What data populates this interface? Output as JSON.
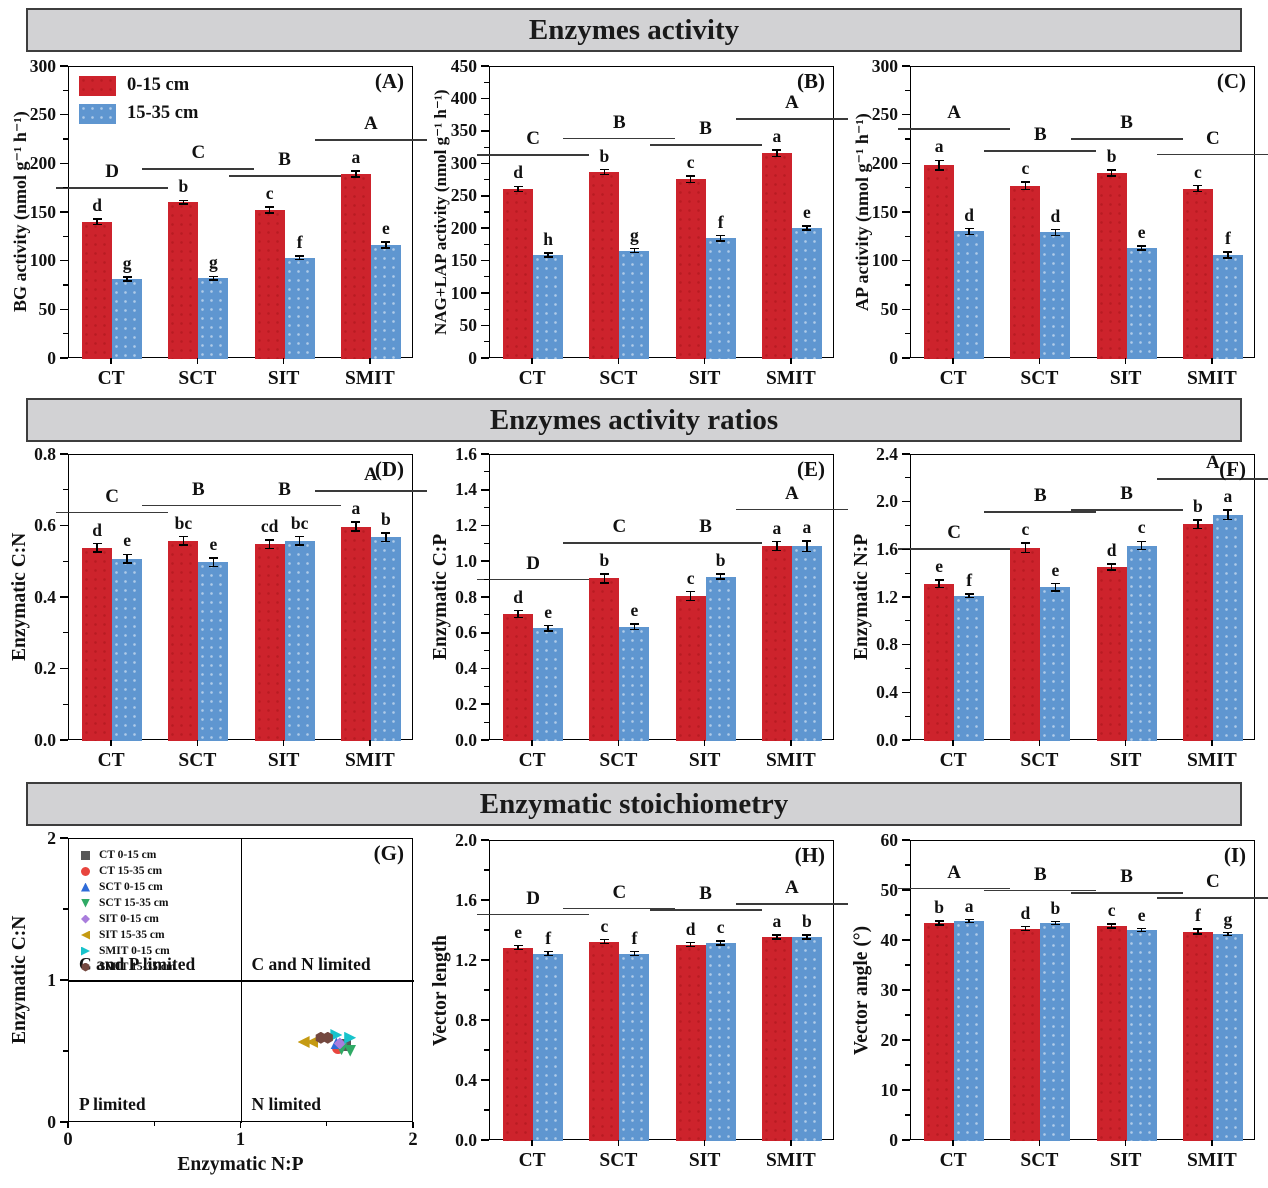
{
  "colors": {
    "red": "#cd232c",
    "blue": "#5f96d0",
    "header_bg": "#d2d2d4",
    "header_border": "#3d3d3d",
    "axis": "#000000"
  },
  "sections": [
    {
      "title": "Enzymes activity"
    },
    {
      "title": "Enzymes activity ratios"
    },
    {
      "title": "Enzymatic stoichiometry"
    }
  ],
  "depth_legend": {
    "series1": "0-15 cm",
    "series2": "15-35 cm"
  },
  "chart_data": [
    {
      "id": "A",
      "type": "bar",
      "panel_label": "(A)",
      "ylabel": "BG activity (nmol g⁻¹ h⁻¹)",
      "ylim": [
        0,
        300
      ],
      "ystep": 50,
      "tick_decimals": 0,
      "categories": [
        "CT",
        "SCT",
        "SIT",
        "SMIT"
      ],
      "series": [
        {
          "name": "0-15 cm",
          "color_key": "red",
          "values": [
            141,
            161,
            153,
            190
          ],
          "errors": [
            3,
            2,
            3,
            3
          ],
          "letters": [
            "d",
            "b",
            "c",
            "a"
          ]
        },
        {
          "name": "15-35 cm",
          "color_key": "blue",
          "values": [
            82,
            83,
            104,
            117
          ],
          "errors": [
            2,
            2,
            2,
            3
          ],
          "letters": [
            "g",
            "g",
            "f",
            "e"
          ]
        }
      ],
      "group_letters": [
        "D",
        "C",
        "B",
        "A"
      ],
      "show_legend": true
    },
    {
      "id": "B",
      "type": "bar",
      "panel_label": "(B)",
      "ylabel": "NAG+LAP activity (nmol g⁻¹ h⁻¹)",
      "ylim": [
        0,
        450
      ],
      "ystep": 50,
      "tick_decimals": 0,
      "categories": [
        "CT",
        "SCT",
        "SIT",
        "SMIT"
      ],
      "series": [
        {
          "name": "0-15 cm",
          "color_key": "red",
          "values": [
            262,
            288,
            277,
            317
          ],
          "errors": [
            4,
            4,
            5,
            5
          ],
          "letters": [
            "d",
            "b",
            "c",
            "a"
          ]
        },
        {
          "name": "15-35 cm",
          "color_key": "blue",
          "values": [
            160,
            167,
            186,
            202
          ],
          "errors": [
            3,
            3,
            4,
            3
          ],
          "letters": [
            "h",
            "g",
            "f",
            "e"
          ]
        }
      ],
      "group_letters": [
        "C",
        "B",
        "B",
        "A"
      ],
      "show_legend": false
    },
    {
      "id": "C",
      "type": "bar",
      "panel_label": "(C)",
      "ylabel": "AP activity (nmol g⁻¹ h⁻¹)",
      "ylim": [
        0,
        300
      ],
      "ystep": 50,
      "tick_decimals": 0,
      "categories": [
        "CT",
        "SCT",
        "SIT",
        "SMIT"
      ],
      "series": [
        {
          "name": "0-15 cm",
          "color_key": "red",
          "values": [
            199,
            178,
            191,
            175
          ],
          "errors": [
            5,
            4,
            3,
            3
          ],
          "letters": [
            "a",
            "c",
            "b",
            "c"
          ]
        },
        {
          "name": "15-35 cm",
          "color_key": "blue",
          "values": [
            131,
            130,
            114,
            107
          ],
          "errors": [
            3,
            3,
            2,
            3
          ],
          "letters": [
            "d",
            "d",
            "e",
            "f"
          ]
        }
      ],
      "group_letters": [
        "A",
        "B",
        "B",
        "C"
      ],
      "show_legend": false
    },
    {
      "id": "D",
      "type": "bar",
      "panel_label": "(D)",
      "ylabel": "Enzymatic C:N",
      "ylim": [
        0,
        0.8
      ],
      "ystep": 0.2,
      "tick_decimals": 1,
      "categories": [
        "CT",
        "SCT",
        "SIT",
        "SMIT"
      ],
      "series": [
        {
          "name": "0-15 cm",
          "color_key": "red",
          "values": [
            0.54,
            0.56,
            0.55,
            0.6
          ],
          "errors": [
            0.012,
            0.012,
            0.012,
            0.012
          ],
          "letters": [
            "d",
            "bc",
            "cd",
            "a"
          ]
        },
        {
          "name": "15-35 cm",
          "color_key": "blue",
          "values": [
            0.51,
            0.5,
            0.56,
            0.57
          ],
          "errors": [
            0.012,
            0.012,
            0.012,
            0.012
          ],
          "letters": [
            "e",
            "e",
            "bc",
            "b"
          ]
        }
      ],
      "group_letters": [
        "C",
        "B",
        "B",
        "A"
      ],
      "show_legend": false
    },
    {
      "id": "E",
      "type": "bar",
      "panel_label": "(E)",
      "ylabel": "Enzymatic C:P",
      "ylim": [
        0,
        1.6
      ],
      "ystep": 0.2,
      "tick_decimals": 1,
      "categories": [
        "CT",
        "SCT",
        "SIT",
        "SMIT"
      ],
      "series": [
        {
          "name": "0-15 cm",
          "color_key": "red",
          "values": [
            0.71,
            0.91,
            0.81,
            1.09
          ],
          "errors": [
            0.02,
            0.025,
            0.025,
            0.025
          ],
          "letters": [
            "d",
            "b",
            "c",
            "a"
          ]
        },
        {
          "name": "15-35 cm",
          "color_key": "blue",
          "values": [
            0.63,
            0.64,
            0.92,
            1.09
          ],
          "errors": [
            0.015,
            0.015,
            0.015,
            0.03
          ],
          "letters": [
            "e",
            "e",
            "b",
            "a"
          ]
        }
      ],
      "group_letters": [
        "D",
        "C",
        "B",
        "A"
      ],
      "show_legend": false
    },
    {
      "id": "F",
      "type": "bar",
      "panel_label": "(F)",
      "ylabel": "Enzymatic N:P",
      "ylim": [
        0,
        2.4
      ],
      "ystep": 0.4,
      "tick_decimals": 1,
      "categories": [
        "CT",
        "SCT",
        "SIT",
        "SMIT"
      ],
      "series": [
        {
          "name": "0-15 cm",
          "color_key": "red",
          "values": [
            1.32,
            1.62,
            1.46,
            1.82
          ],
          "errors": [
            0.03,
            0.04,
            0.025,
            0.035
          ],
          "letters": [
            "e",
            "c",
            "d",
            "b"
          ]
        },
        {
          "name": "15-35 cm",
          "color_key": "blue",
          "values": [
            1.22,
            1.29,
            1.64,
            1.9
          ],
          "errors": [
            0.015,
            0.03,
            0.035,
            0.04
          ],
          "letters": [
            "f",
            "e",
            "c",
            "a"
          ]
        }
      ],
      "group_letters": [
        "C",
        "B",
        "B",
        "A"
      ],
      "show_legend": false
    },
    {
      "id": "G",
      "type": "scatter",
      "panel_label": "(G)",
      "xlabel": "Enzymatic N:P",
      "ylabel": "Enzymatic C:N",
      "xlim": [
        0,
        2
      ],
      "ylim": [
        0,
        2
      ],
      "xticks": [
        0,
        1,
        2
      ],
      "yticks": [
        0,
        1,
        2
      ],
      "tick_decimals": 0,
      "quadrants": {
        "top_left": "C and P limited",
        "top_right": "C and N limited",
        "bottom_left": "P limited",
        "bottom_right": "N limited"
      },
      "series": [
        {
          "name": "CT 0-15 cm",
          "shape": "square",
          "color": "#595959",
          "points": [
            [
              1.6,
              0.55
            ]
          ]
        },
        {
          "name": "CT 15-35 cm",
          "shape": "circle",
          "color": "#e8453e",
          "points": [
            [
              1.56,
              0.53
            ]
          ]
        },
        {
          "name": "SCT 0-15 cm",
          "shape": "triangle-up",
          "color": "#2e6bd8",
          "points": [
            [
              1.55,
              0.56
            ]
          ]
        },
        {
          "name": "SCT 15-35 cm",
          "shape": "triangle-down",
          "color": "#2faa65",
          "points": [
            [
              1.58,
              0.52
            ],
            [
              1.63,
              0.51
            ]
          ]
        },
        {
          "name": "SIT 0-15 cm",
          "shape": "diamond",
          "color": "#a97ddc",
          "points": [
            [
              1.57,
              0.56
            ]
          ]
        },
        {
          "name": "SIT 15-35 cm",
          "shape": "triangle-left",
          "color": "#c59a12",
          "points": [
            [
              1.36,
              0.57
            ],
            [
              1.41,
              0.57
            ]
          ]
        },
        {
          "name": "SMIT 0-15 cm",
          "shape": "triangle-right",
          "color": "#17c3cb",
          "points": [
            [
              1.55,
              0.62
            ],
            [
              1.63,
              0.6
            ]
          ]
        },
        {
          "name": "SMIT 15-35 cm",
          "shape": "hexagon",
          "color": "#74483f",
          "points": [
            [
              1.46,
              0.6
            ],
            [
              1.5,
              0.6
            ]
          ]
        }
      ]
    },
    {
      "id": "H",
      "type": "bar",
      "panel_label": "(H)",
      "ylabel": "Vector length",
      "ylim": [
        0,
        2.0
      ],
      "ystep": 0.4,
      "tick_decimals": 1,
      "categories": [
        "CT",
        "SCT",
        "SIT",
        "SMIT"
      ],
      "series": [
        {
          "name": "0-15 cm",
          "color_key": "red",
          "values": [
            1.29,
            1.33,
            1.31,
            1.36
          ],
          "errors": [
            0.012,
            0.012,
            0.012,
            0.012
          ],
          "letters": [
            "e",
            "c",
            "d",
            "a"
          ]
        },
        {
          "name": "15-35 cm",
          "color_key": "blue",
          "values": [
            1.25,
            1.25,
            1.32,
            1.36
          ],
          "errors": [
            0.012,
            0.012,
            0.012,
            0.012
          ],
          "letters": [
            "f",
            "f",
            "c",
            "b"
          ]
        }
      ],
      "group_letters": [
        "D",
        "C",
        "B",
        "A"
      ],
      "show_legend": false
    },
    {
      "id": "I",
      "type": "bar",
      "panel_label": "(I)",
      "ylabel": "Vector angle (°)",
      "ylim": [
        0,
        60
      ],
      "ystep": 10,
      "tick_decimals": 0,
      "categories": [
        "CT",
        "SCT",
        "SIT",
        "SMIT"
      ],
      "series": [
        {
          "name": "0-15 cm",
          "color_key": "red",
          "values": [
            43.6,
            42.5,
            43.0,
            41.9
          ],
          "errors": [
            0.4,
            0.4,
            0.4,
            0.5
          ],
          "letters": [
            "b",
            "d",
            "c",
            "f"
          ]
        },
        {
          "name": "15-35 cm",
          "color_key": "blue",
          "values": [
            44.0,
            43.6,
            42.2,
            41.4
          ],
          "errors": [
            0.3,
            0.3,
            0.3,
            0.3
          ],
          "letters": [
            "a",
            "b",
            "e",
            "g"
          ]
        }
      ],
      "group_letters": [
        "A",
        "B",
        "B",
        "C"
      ],
      "show_legend": false
    }
  ]
}
